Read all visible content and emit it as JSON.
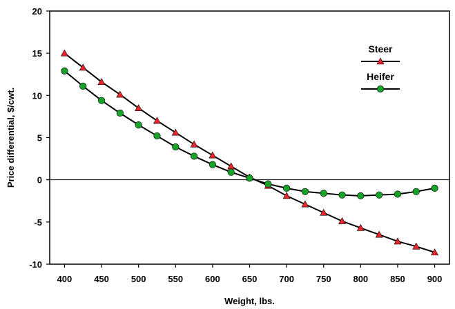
{
  "chart_data": {
    "type": "line",
    "title": "",
    "xlabel": "Weight, lbs.",
    "ylabel": "Price differential, $/cwt.",
    "xlim": [
      380,
      920
    ],
    "ylim": [
      -10,
      20
    ],
    "xticks": [
      400,
      450,
      500,
      550,
      600,
      650,
      700,
      750,
      800,
      850,
      900
    ],
    "yticks": [
      -10,
      -5,
      0,
      5,
      10,
      15,
      20
    ],
    "x": [
      400,
      425,
      450,
      475,
      500,
      525,
      550,
      575,
      600,
      625,
      650,
      675,
      700,
      725,
      750,
      775,
      800,
      825,
      850,
      875,
      900
    ],
    "grid": false,
    "zero_line": true,
    "legend_position": "top-right",
    "series": [
      {
        "name": "Steer",
        "marker": "triangle",
        "color": "#e8262b",
        "values": [
          15.0,
          13.3,
          11.6,
          10.1,
          8.5,
          7.0,
          5.6,
          4.2,
          2.9,
          1.6,
          0.3,
          -0.7,
          -1.9,
          -2.9,
          -3.9,
          -4.9,
          -5.7,
          -6.5,
          -7.3,
          -7.9,
          -8.6
        ]
      },
      {
        "name": "Heifer",
        "marker": "circle",
        "color": "#17a22a",
        "values": [
          12.9,
          11.1,
          9.4,
          7.9,
          6.5,
          5.2,
          3.9,
          2.8,
          1.8,
          0.9,
          0.2,
          -0.5,
          -1.0,
          -1.4,
          -1.6,
          -1.8,
          -1.9,
          -1.8,
          -1.7,
          -1.4,
          -1.0
        ]
      }
    ]
  }
}
